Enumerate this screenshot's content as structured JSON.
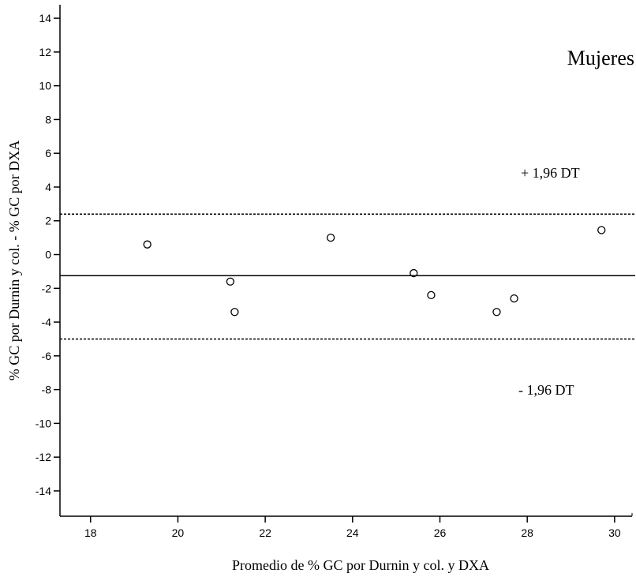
{
  "chart_data": {
    "type": "scatter",
    "title": "",
    "panel_label": "Mujeres",
    "xlabel": "Promedio de % GC por Durnin y col. y DXA",
    "ylabel": "% GC por Durnin y col. - % GC por DXA",
    "xlim": [
      17.3,
      30.4
    ],
    "ylim": [
      -15.5,
      14.8
    ],
    "x_ticks": [
      18,
      20,
      22,
      24,
      26,
      28,
      30
    ],
    "y_ticks": [
      14,
      12,
      10,
      8,
      6,
      4,
      2,
      0,
      -2,
      -4,
      -6,
      -8,
      -10,
      -12,
      -14
    ],
    "grid": false,
    "points": [
      {
        "x": 19.3,
        "y": 0.6
      },
      {
        "x": 21.2,
        "y": -1.6
      },
      {
        "x": 21.3,
        "y": -3.4
      },
      {
        "x": 23.5,
        "y": 1.0
      },
      {
        "x": 25.4,
        "y": -1.1
      },
      {
        "x": 25.8,
        "y": -2.4
      },
      {
        "x": 27.3,
        "y": -3.4
      },
      {
        "x": 27.7,
        "y": -2.6
      },
      {
        "x": 29.7,
        "y": 1.45
      }
    ],
    "reference_lines": [
      {
        "name": "mean",
        "y": -1.25,
        "style": "solid"
      },
      {
        "name": "upper",
        "y": 2.4,
        "style": "dotted",
        "label": "+ 1,96 DT"
      },
      {
        "name": "lower",
        "y": -5.0,
        "style": "dotted",
        "label": "- 1,96 DT"
      }
    ]
  }
}
